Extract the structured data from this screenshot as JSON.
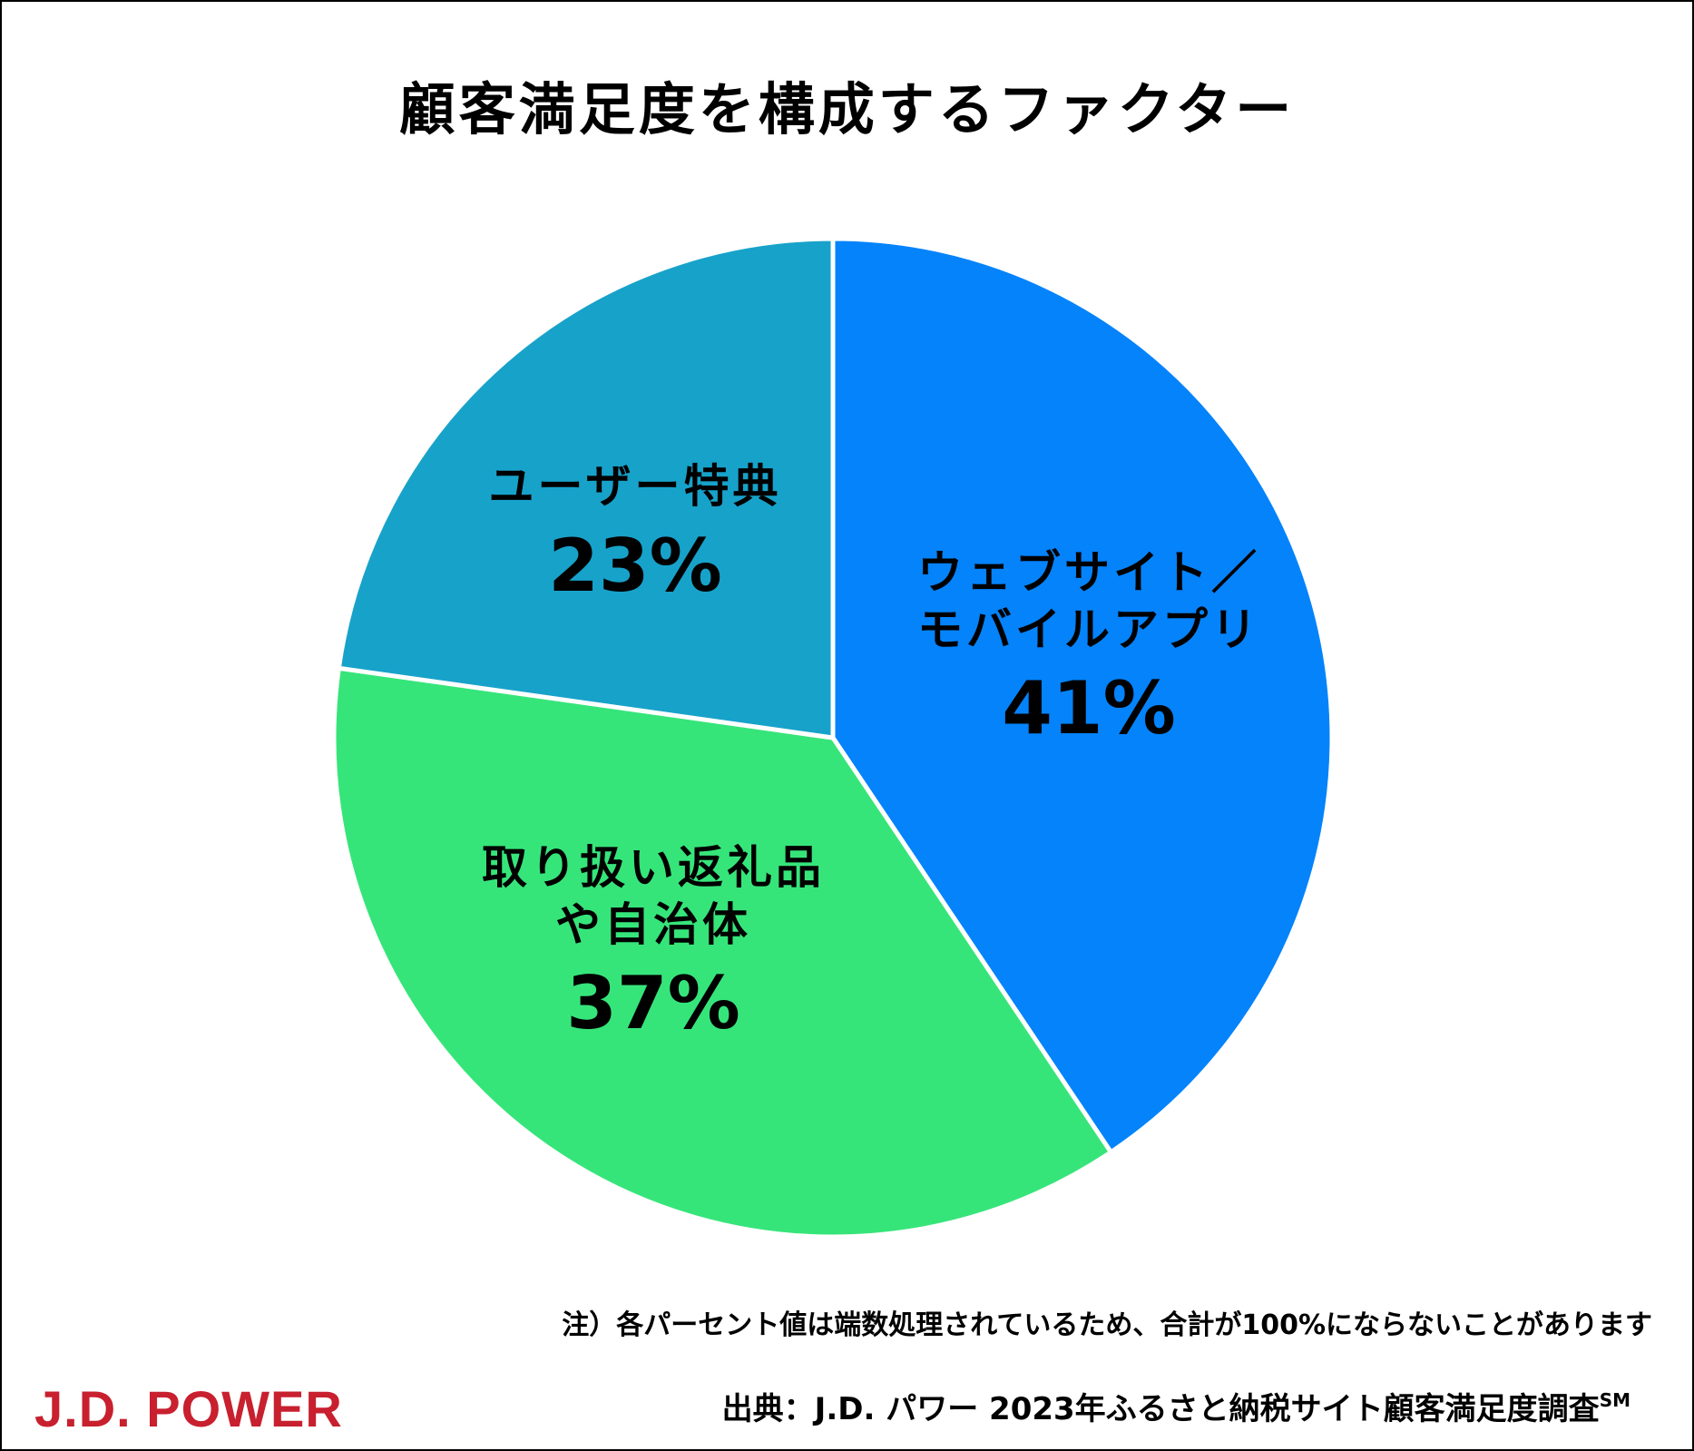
{
  "chart_data": {
    "type": "pie",
    "title": "顧客満足度を構成するファクター",
    "slices": [
      {
        "name_lines": [
          "ウェブサイト／",
          "モバイルアプリ"
        ],
        "value": 41,
        "label": "41%",
        "color": "#0483fb"
      },
      {
        "name_lines": [
          "取り扱い返礼品",
          "や自治体"
        ],
        "value": 37,
        "label": "37%",
        "color": "#36e57a"
      },
      {
        "name_lines": [
          "ユーザー特典"
        ],
        "value": 23,
        "label": "23%",
        "color": "#17a2ca"
      }
    ],
    "start": "12 o'clock",
    "direction": "clockwise",
    "legend": "none"
  },
  "footer": {
    "note": "注）各パーセント値は端数処理されているため、合計が100%にならないことがあります",
    "source_text": "出典：J.D. パワー 2023年ふるさと納税サイト顧客満足度調査",
    "source_mark": "SM"
  },
  "logo": {
    "text": "J.D. POWER",
    "color": "#c8202f"
  }
}
